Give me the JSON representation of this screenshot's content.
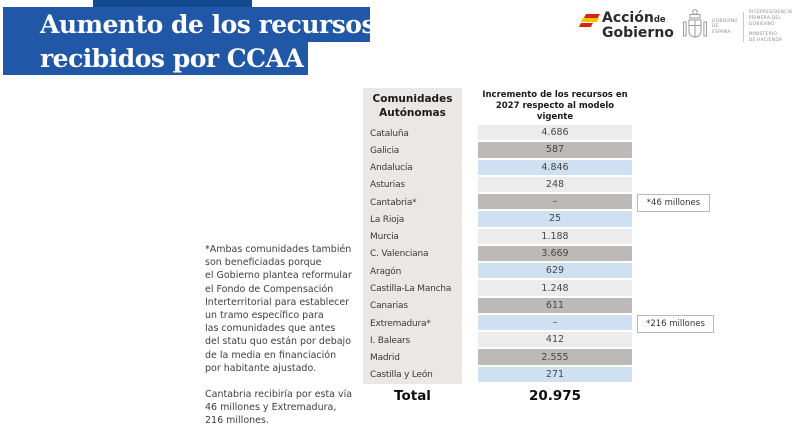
{
  "title": {
    "line1": "Aumento de los recursos",
    "line2": "recibidos por CCAA"
  },
  "logos": {
    "accion": {
      "word1": "Acción",
      "word2": "de",
      "word3": "Gobierno"
    },
    "gobierno": {
      "entity": "GOBIERNO\nDE ESPAÑA",
      "dept1": "VICEPRESIDENCIA\nPRIMERA DEL GOBIERNO",
      "dept2": "MINISTERIO\nDE HACIENDA"
    }
  },
  "note": {
    "para1": "*Ambas comunidades también\nson beneficiadas porque\nel Gobierno plantea reformular\nel Fondo de Compensación\nInterterritorial para establecer\nun tramo específico para\nlas comunidades que antes\ndel statu quo están por debajo\nde la media en financiación\npor habitante ajustado.",
    "para2": "Cantabria recibiría por esta vía\n46 millones y Extremadura,\n216 millones."
  },
  "table": {
    "col1_header": "Comunidades\nAutónomas",
    "col2_header": "Incremento de los recursos en\n2027 respecto al modelo vigente",
    "rows": [
      {
        "name": "Cataluña",
        "value": "4.686"
      },
      {
        "name": "Galicia",
        "value": "587"
      },
      {
        "name": "Andalucía",
        "value": "4.846"
      },
      {
        "name": "Asturias",
        "value": "248"
      },
      {
        "name": "Cantabria*",
        "value": "–"
      },
      {
        "name": "La Rioja",
        "value": "25"
      },
      {
        "name": "Murcia",
        "value": "1.188"
      },
      {
        "name": "C. Valenciana",
        "value": "3.669"
      },
      {
        "name": "Aragón",
        "value": "629"
      },
      {
        "name": "Castilla-La Mancha",
        "value": "1.248"
      },
      {
        "name": "Canarias",
        "value": "611"
      },
      {
        "name": "Extremadura*",
        "value": "–"
      },
      {
        "name": "I. Balears",
        "value": "412"
      },
      {
        "name": "Madrid",
        "value": "2.555"
      },
      {
        "name": "Castilla y León",
        "value": "271"
      }
    ],
    "total_label": "Total",
    "total_value": "20.975"
  },
  "callouts": [
    {
      "text": "*46 millones"
    },
    {
      "text": "*216 millones"
    }
  ],
  "colors": {
    "title_blue": "#2057a7",
    "title_accent_dark_blue": "#164a90",
    "name_column_gray": "#e9e8e7",
    "row_light": "#ececec",
    "row_gray": "#bcb9b6",
    "row_blue": "#cfe0f2",
    "flag_red": "#d62612",
    "flag_yellow": "#f7c400",
    "logo_gray": "#8e8e8e"
  }
}
